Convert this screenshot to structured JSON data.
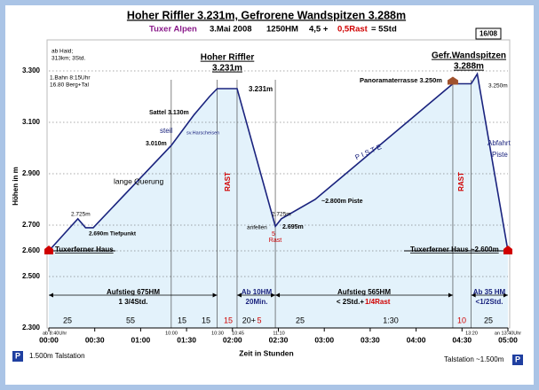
{
  "chart_data": {
    "type": "area",
    "title": "Hoher Riffler 3.231m, Gefrorene Wandspitzen 3.288m",
    "subtitle": [
      "Tuxer Alpen",
      "3.Mai 2008",
      "1250HM",
      "4,5 +",
      "0,5Rast",
      "= 5Std"
    ],
    "badge": "16/08",
    "xlabel": "Zeit in Stunden",
    "ylabel": "Höhen in m",
    "color": "#1a237e",
    "fill": "#e3f2fb",
    "grid": true,
    "x": [
      0,
      19,
      24,
      29,
      80,
      95,
      105,
      110,
      123,
      148,
      152,
      174,
      264,
      276,
      280,
      300
    ],
    "values": [
      2600,
      2725,
      2690,
      2690,
      3010,
      3130,
      3200,
      3231,
      3231,
      2695,
      2725,
      2800,
      3250,
      3250,
      3288,
      2600
    ],
    "xlim": [
      0,
      300
    ],
    "ylim": [
      2300,
      3400
    ],
    "xticks": [
      {
        "value": 0,
        "label": "00:00"
      },
      {
        "value": 30,
        "label": "00:30"
      },
      {
        "value": 60,
        "label": "01:00"
      },
      {
        "value": 90,
        "label": "01:30"
      },
      {
        "value": 120,
        "label": "02:00"
      },
      {
        "value": 150,
        "label": "02:30"
      },
      {
        "value": 180,
        "label": "03:00"
      },
      {
        "value": 210,
        "label": "03:30"
      },
      {
        "value": 240,
        "label": "04:00"
      },
      {
        "value": 270,
        "label": "04:30"
      },
      {
        "value": 300,
        "label": "05:00"
      }
    ],
    "yticks": [
      {
        "value": 2300,
        "label": "2.300"
      },
      {
        "value": 2500,
        "label": "2.500"
      },
      {
        "value": 2600,
        "label": "2.600"
      },
      {
        "value": 2700,
        "label": "2.700"
      },
      {
        "value": 2900,
        "label": "2.900"
      },
      {
        "value": 3100,
        "label": "3.100"
      },
      {
        "value": 3300,
        "label": "3.300"
      }
    ],
    "annotations": [
      "ab Haid;",
      "313km; 3Std.",
      "1.Bahn 8:15Uhr",
      "16.80 Berg+Tal",
      "Hoher Riffler",
      "3.231m",
      "Gefr.Wandspitzen",
      "3.288m",
      "3.231m",
      "Panoramaterrasse 3.250m",
      "3.250m",
      "Sattel 3.130m",
      "steil",
      "sv.Harscheisen",
      "3.010m",
      "lange   Querung",
      "RAST",
      "RAST",
      "P I S T E",
      "Abfahrt",
      "Piste",
      "2.725m",
      "2.690m Tiefpunkt",
      "~2.800m Piste",
      "2.725m",
      "anfellen",
      "2.695m",
      "5",
      "Rast",
      "Tuxerferner Haus",
      "Tuxerferner Haus ~2.600m",
      "Aufstieg 675HM",
      "1 3/4Std.",
      "Ab 10HM",
      "20Min.",
      "Aufstieg 565HM",
      "< 2Std.+",
      "1/4Rast",
      "Ab 35 HM",
      "<1/2Std.",
      "25",
      "55",
      "15",
      "15",
      "15",
      "20+",
      "5",
      "25",
      "1:30",
      "10",
      "25",
      "ab 8:40Uhr",
      "10:00",
      "10:30",
      "10:45",
      "11:10",
      "13:20",
      "an 13:40Uhr",
      "P",
      "1.500m Talstation",
      "Talstation ~1.500m",
      "P"
    ]
  }
}
